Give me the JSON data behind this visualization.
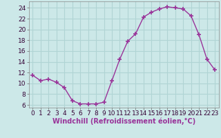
{
  "x": [
    0,
    1,
    2,
    3,
    4,
    5,
    6,
    7,
    8,
    9,
    10,
    11,
    12,
    13,
    14,
    15,
    16,
    17,
    18,
    19,
    20,
    21,
    22,
    23
  ],
  "y": [
    11.5,
    10.5,
    10.8,
    10.2,
    9.2,
    6.8,
    6.2,
    6.2,
    6.2,
    6.5,
    10.5,
    14.5,
    17.8,
    19.2,
    22.3,
    23.2,
    23.8,
    24.2,
    24.0,
    23.8,
    22.5,
    19.0,
    14.5,
    12.5
  ],
  "line_color": "#993399",
  "marker": "+",
  "marker_size": 4,
  "bg_color": "#cce8e8",
  "grid_color": "#b0d4d4",
  "xlabel": "Windchill (Refroidissement éolien,°C)",
  "ylabel_ticks": [
    6,
    8,
    10,
    12,
    14,
    16,
    18,
    20,
    22,
    24
  ],
  "xlim": [
    -0.5,
    23.5
  ],
  "ylim": [
    5.5,
    25.2
  ],
  "tick_fontsize": 6.5,
  "xlabel_fontsize": 7
}
